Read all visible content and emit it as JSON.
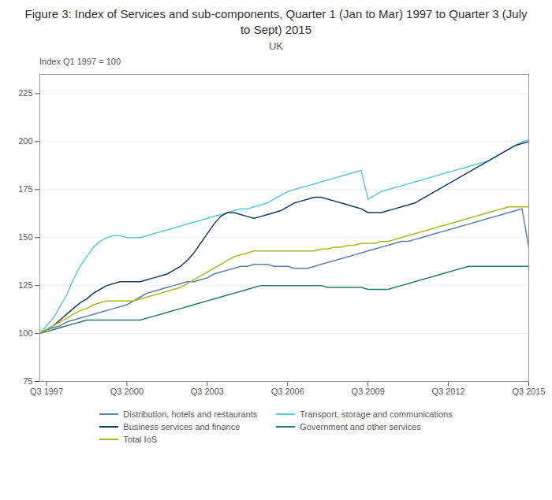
{
  "chart_data": {
    "type": "line",
    "title": "Figure 3: Index of Services and sub-components, Quarter 1 (Jan to Mar) 1997 to Quarter 3 (July to Sept) 2015",
    "subtitle": "UK",
    "ylabel": "Index Q1 1997 = 100",
    "categories": [
      null,
      "Q3 1997",
      null,
      null,
      null,
      null,
      null,
      null,
      null,
      null,
      null,
      null,
      null,
      "Q3 2000",
      null,
      null,
      null,
      null,
      null,
      null,
      null,
      null,
      null,
      null,
      null,
      "Q3 2003",
      null,
      null,
      null,
      null,
      null,
      null,
      null,
      null,
      null,
      null,
      null,
      "Q3 2006",
      null,
      null,
      null,
      null,
      null,
      null,
      null,
      null,
      null,
      null,
      null,
      "Q3 2009",
      null,
      null,
      null,
      null,
      null,
      null,
      null,
      null,
      null,
      null,
      null,
      "Q3 2012",
      null,
      null,
      null,
      null,
      null,
      null,
      null,
      null,
      null,
      null,
      null,
      "Q3 2015"
    ],
    "series": [
      {
        "name": "Distribution, hotels and restaurants",
        "color": "#5b7faa",
        "values": [
          100,
          102,
          103,
          104,
          106,
          107,
          108,
          109,
          110,
          111,
          112,
          113,
          114,
          115,
          117,
          119,
          121,
          122,
          123,
          124,
          125,
          126,
          127,
          127,
          128,
          129,
          131,
          132,
          133,
          134,
          135,
          135,
          136,
          136,
          136,
          135,
          135,
          135,
          134,
          134,
          134,
          135,
          136,
          137,
          138,
          139,
          140,
          141,
          142,
          143,
          144,
          145,
          146,
          147,
          148,
          148,
          149,
          150,
          151,
          152,
          153,
          154,
          155,
          156,
          157,
          158,
          159,
          160,
          161,
          162,
          163,
          164,
          165,
          145
        ]
      },
      {
        "name": "Transport, storage and communications",
        "color": "#5fc8d8",
        "values": [
          100,
          104,
          108,
          114,
          120,
          128,
          135,
          140,
          145,
          148,
          150,
          151,
          151,
          150,
          150,
          150,
          151,
          152,
          153,
          154,
          155,
          156,
          157,
          158,
          159,
          160,
          161,
          162,
          163,
          164,
          165,
          165,
          166,
          167,
          168,
          170,
          172,
          174,
          175,
          176,
          177,
          178,
          179,
          180,
          181,
          182,
          183,
          184,
          185,
          170,
          172,
          174,
          175,
          176,
          177,
          178,
          179,
          180,
          181,
          182,
          183,
          184,
          185,
          186,
          187,
          188,
          189,
          190,
          192,
          194,
          196,
          198,
          200,
          201
        ]
      },
      {
        "name": "Business services and finance",
        "color": "#1a3a5c",
        "values": [
          100,
          102,
          104,
          107,
          110,
          113,
          116,
          118,
          121,
          123,
          125,
          126,
          127,
          127,
          127,
          127,
          128,
          129,
          130,
          131,
          133,
          135,
          138,
          142,
          147,
          152,
          157,
          161,
          163,
          163,
          162,
          161,
          160,
          161,
          162,
          163,
          164,
          166,
          168,
          169,
          170,
          171,
          171,
          170,
          169,
          168,
          167,
          166,
          165,
          163,
          163,
          163,
          164,
          165,
          166,
          167,
          168,
          170,
          172,
          174,
          176,
          178,
          180,
          182,
          184,
          186,
          188,
          190,
          192,
          194,
          196,
          198,
          199,
          200
        ]
      },
      {
        "name": "Government and other services",
        "color": "#2a7a6a",
        "values": [
          100,
          101,
          102,
          103,
          104,
          105,
          106,
          107,
          107,
          107,
          107,
          107,
          107,
          107,
          107,
          107,
          108,
          109,
          110,
          111,
          112,
          113,
          114,
          115,
          116,
          117,
          118,
          119,
          120,
          121,
          122,
          123,
          124,
          125,
          125,
          125,
          125,
          125,
          125,
          125,
          125,
          125,
          125,
          124,
          124,
          124,
          124,
          124,
          124,
          123,
          123,
          123,
          123,
          124,
          125,
          126,
          127,
          128,
          129,
          130,
          131,
          132,
          133,
          134,
          135,
          135,
          135,
          135,
          135,
          135,
          135,
          135,
          135,
          135
        ]
      },
      {
        "name": "Total IoS",
        "color": "#a8b820",
        "values": [
          100,
          102,
          104,
          106,
          108,
          110,
          112,
          113,
          115,
          116,
          117,
          117,
          117,
          117,
          117,
          118,
          119,
          120,
          121,
          122,
          123,
          124,
          126,
          128,
          130,
          132,
          134,
          136,
          138,
          140,
          141,
          142,
          143,
          143,
          143,
          143,
          143,
          143,
          143,
          143,
          143,
          143,
          144,
          144,
          145,
          145,
          146,
          146,
          147,
          147,
          147,
          148,
          148,
          149,
          150,
          151,
          152,
          153,
          154,
          155,
          156,
          157,
          158,
          159,
          160,
          161,
          162,
          163,
          164,
          165,
          166,
          166,
          166,
          166
        ]
      }
    ],
    "ylim": [
      75,
      235
    ],
    "yticks": [
      75,
      100,
      125,
      150,
      175,
      200,
      225
    ],
    "grid": true,
    "legend": "bottom"
  }
}
